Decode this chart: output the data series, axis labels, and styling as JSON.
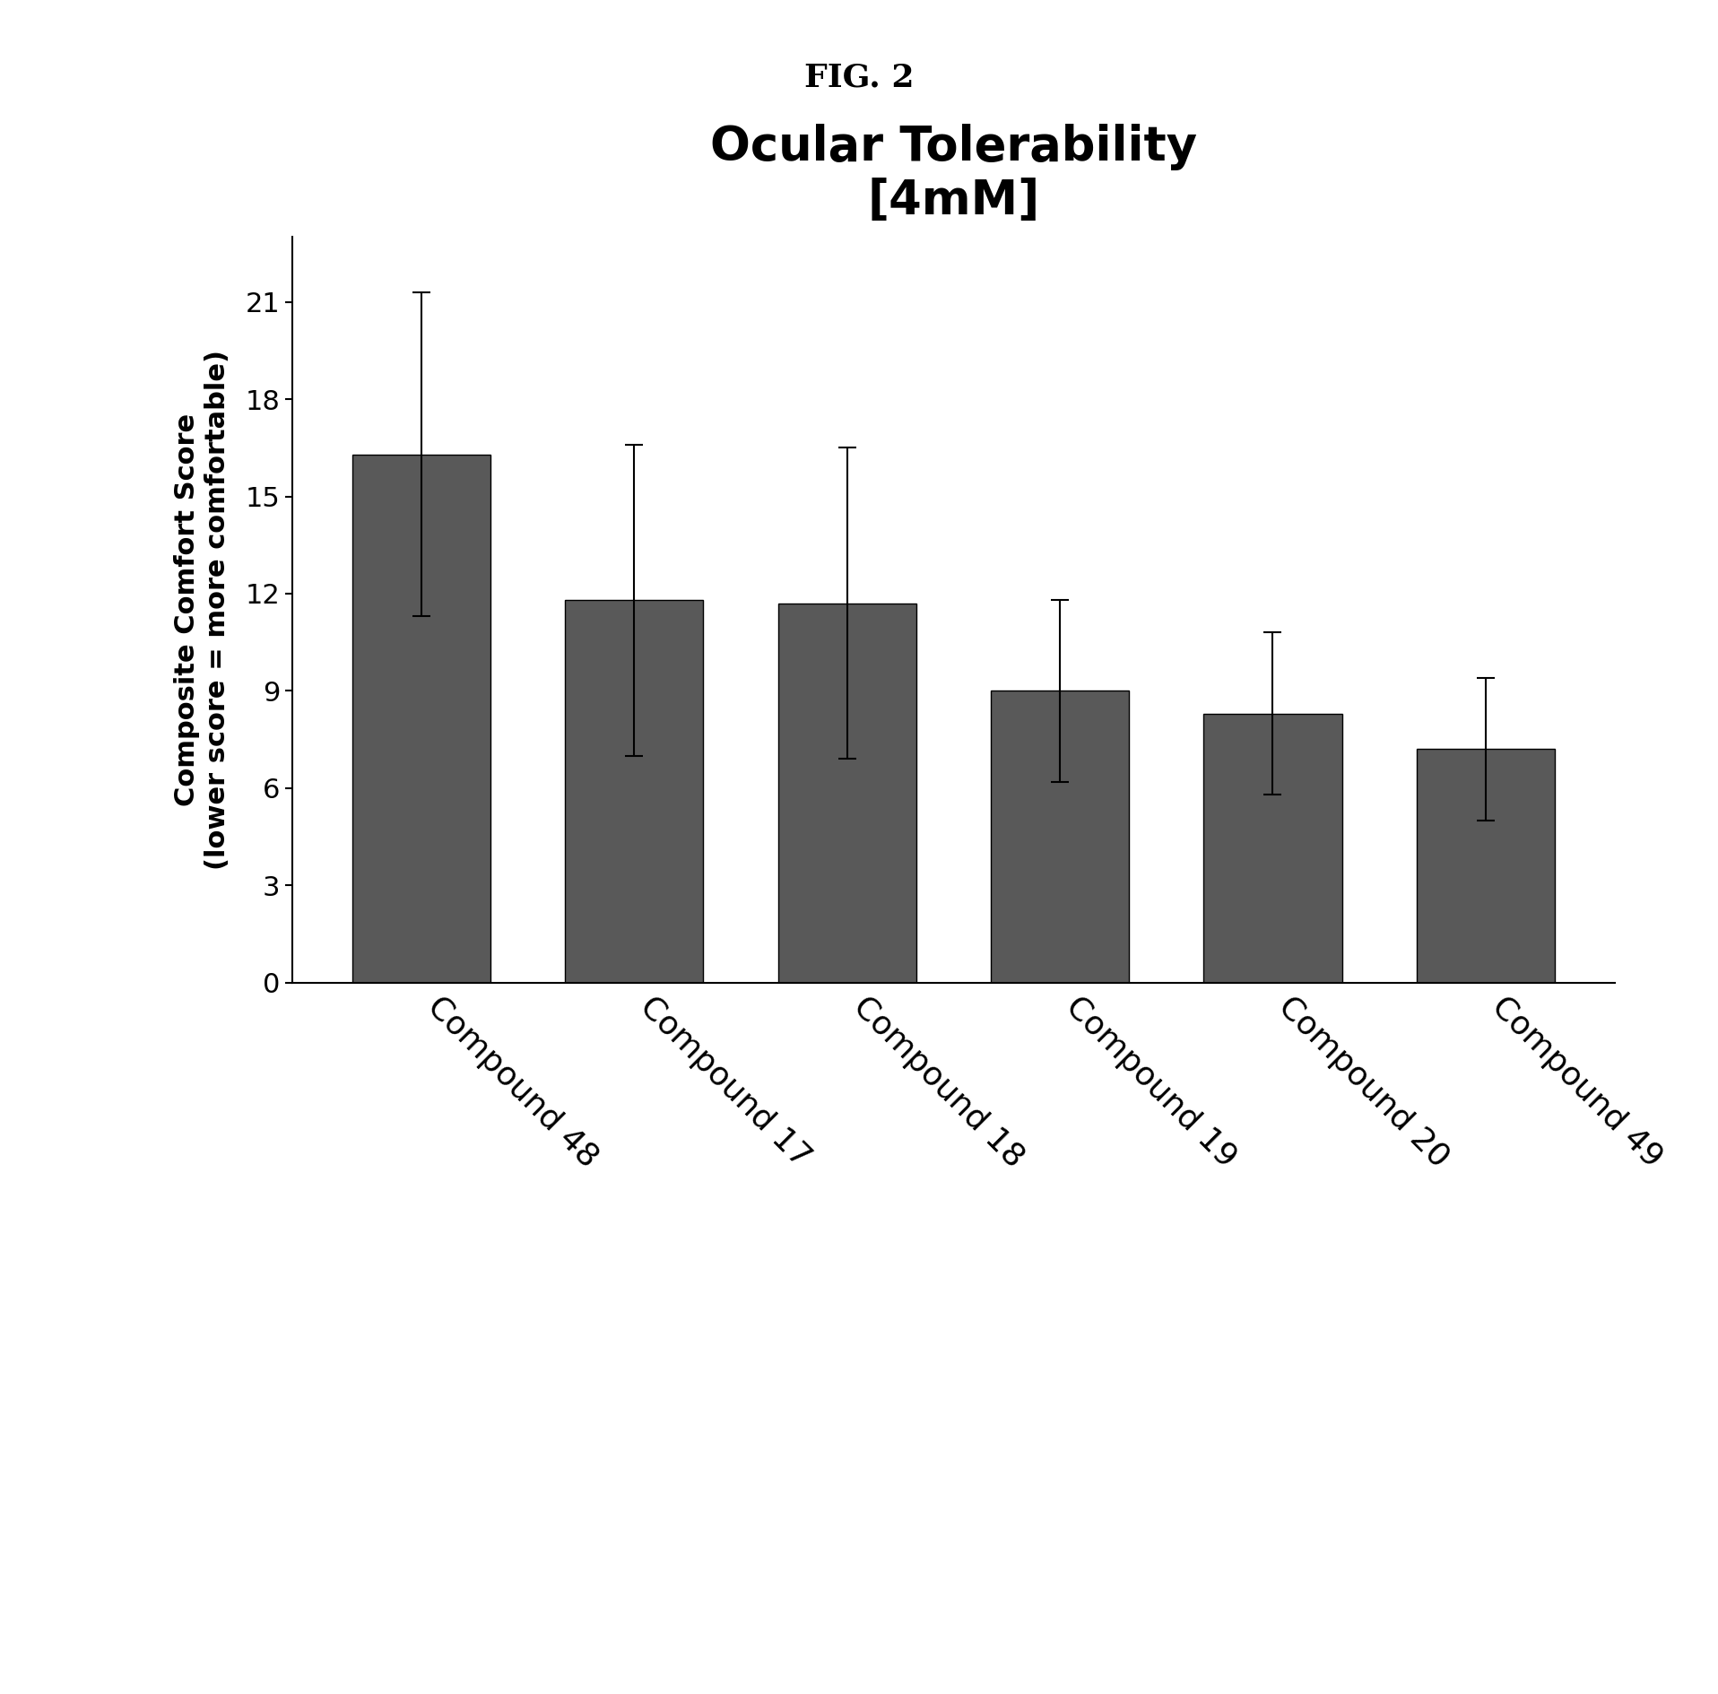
{
  "title_line1": "Ocular Tolerability",
  "title_line2": "[4mM]",
  "ylabel_line1": "Composite Comfort Score",
  "ylabel_line2": "(lower score = more comfortable)",
  "fig_title": "FIG. 2",
  "categories": [
    "Compound 48",
    "Compound 17",
    "Compound 18",
    "Compound 19",
    "Compound 20",
    "Compound 49"
  ],
  "values": [
    16.3,
    11.8,
    11.7,
    9.0,
    8.3,
    7.2
  ],
  "errors": [
    5.0,
    4.8,
    4.8,
    2.8,
    2.5,
    2.2
  ],
  "bar_color": "#595959",
  "bar_edge_color": "#000000",
  "ylim": [
    0,
    23
  ],
  "yticks": [
    0,
    3,
    6,
    9,
    12,
    15,
    18,
    21
  ],
  "background_color": "#ffffff",
  "title_fontsize": 38,
  "subtitle_fontsize": 34,
  "ylabel_fontsize": 22,
  "tick_fontsize": 22,
  "xtick_fontsize": 26,
  "fig_title_fontsize": 26
}
